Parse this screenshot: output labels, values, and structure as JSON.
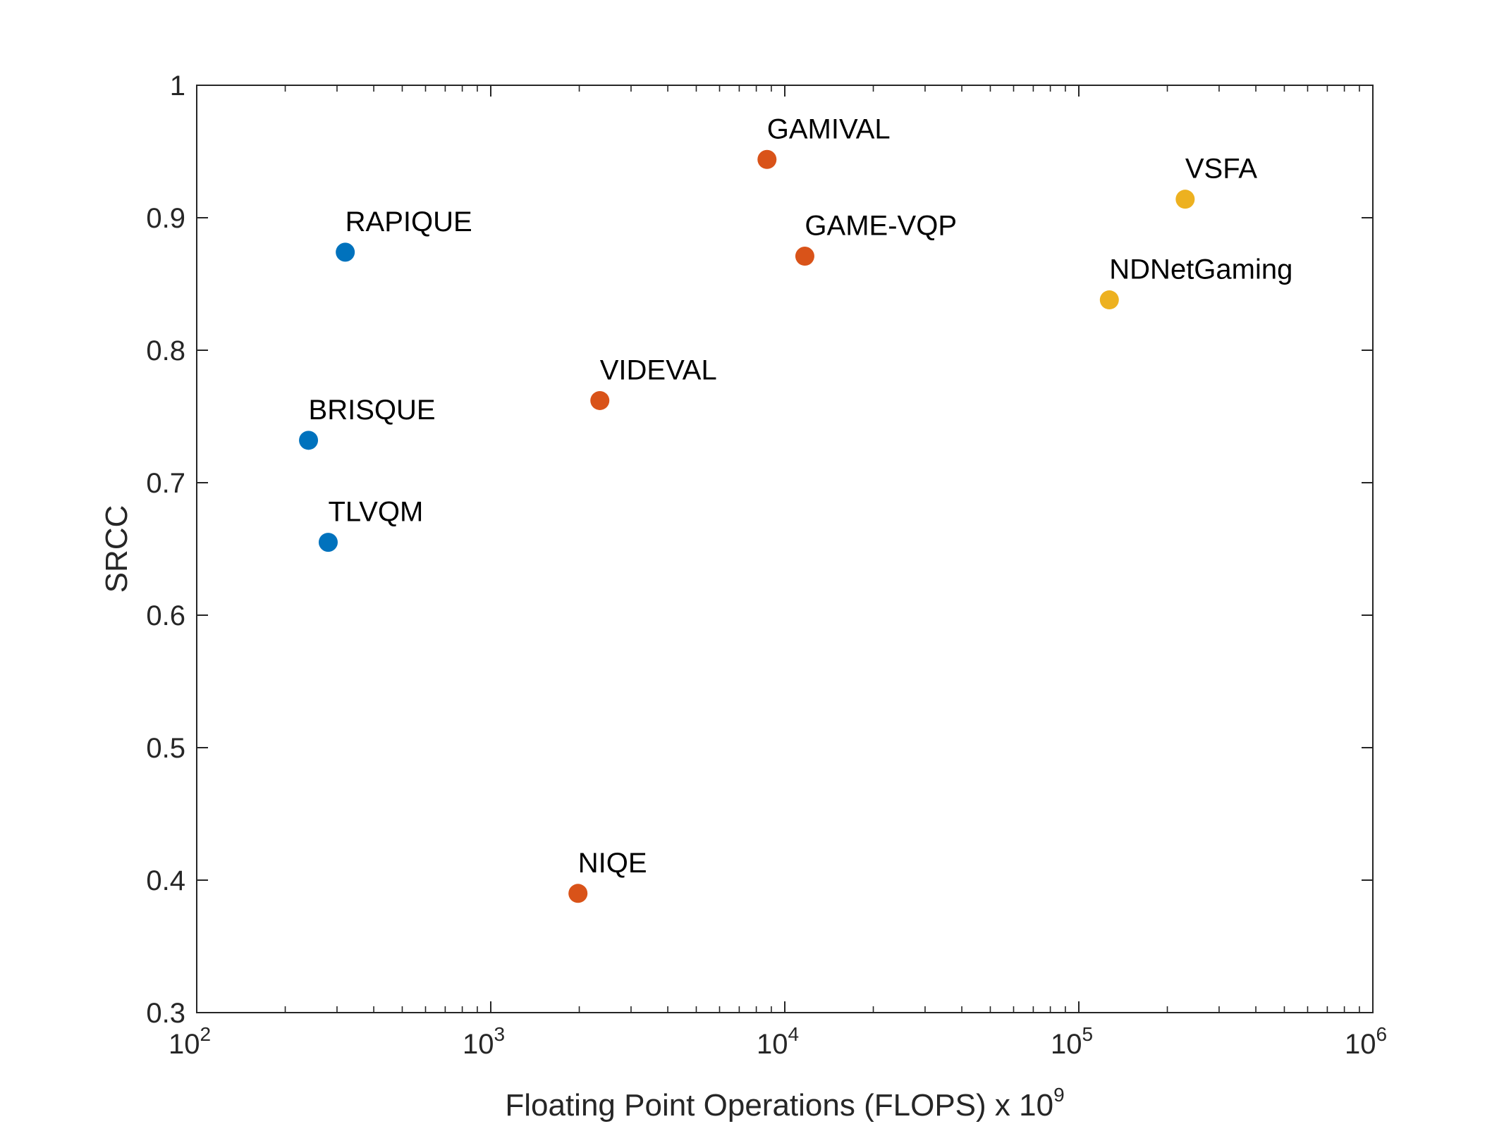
{
  "chart_data": {
    "type": "scatter",
    "xscale": "log",
    "xlim": [
      100,
      1000000
    ],
    "ylim": [
      0.3,
      1.0
    ],
    "xlabel": "Floating Point Operations (FLOPS) x 10",
    "xlabel_superscript": "9",
    "ylabel": "SRCC",
    "grid": false,
    "x_ticks": [
      {
        "value": 100,
        "base": "10",
        "exp": "2"
      },
      {
        "value": 1000,
        "base": "10",
        "exp": "3"
      },
      {
        "value": 10000,
        "base": "10",
        "exp": "4"
      },
      {
        "value": 100000,
        "base": "10",
        "exp": "5"
      },
      {
        "value": 1000000,
        "base": "10",
        "exp": "6"
      }
    ],
    "y_ticks": [
      {
        "value": 0.3,
        "label": "0.3"
      },
      {
        "value": 0.4,
        "label": "0.4"
      },
      {
        "value": 0.5,
        "label": "0.5"
      },
      {
        "value": 0.6,
        "label": "0.6"
      },
      {
        "value": 0.7,
        "label": "0.7"
      },
      {
        "value": 0.8,
        "label": "0.8"
      },
      {
        "value": 0.9,
        "label": "0.9"
      },
      {
        "value": 1.0,
        "label": "1"
      }
    ],
    "series": [
      {
        "color": "#0072BD",
        "points": [
          {
            "label": "RAPIQUE",
            "x": 320,
            "y": 0.874
          },
          {
            "label": "BRISQUE",
            "x": 240,
            "y": 0.732
          },
          {
            "label": "TLVQM",
            "x": 280,
            "y": 0.655
          }
        ]
      },
      {
        "color": "#D95319",
        "points": [
          {
            "label": "GAMIVAL",
            "x": 8700,
            "y": 0.944
          },
          {
            "label": "GAME-VQP",
            "x": 11700,
            "y": 0.871
          },
          {
            "label": "VIDEVAL",
            "x": 2350,
            "y": 0.762
          },
          {
            "label": "NIQE",
            "x": 1980,
            "y": 0.39
          }
        ]
      },
      {
        "color": "#EDB120",
        "points": [
          {
            "label": "VSFA",
            "x": 230000,
            "y": 0.914
          },
          {
            "label": "NDNetGaming",
            "x": 127000,
            "y": 0.838
          }
        ]
      }
    ]
  }
}
